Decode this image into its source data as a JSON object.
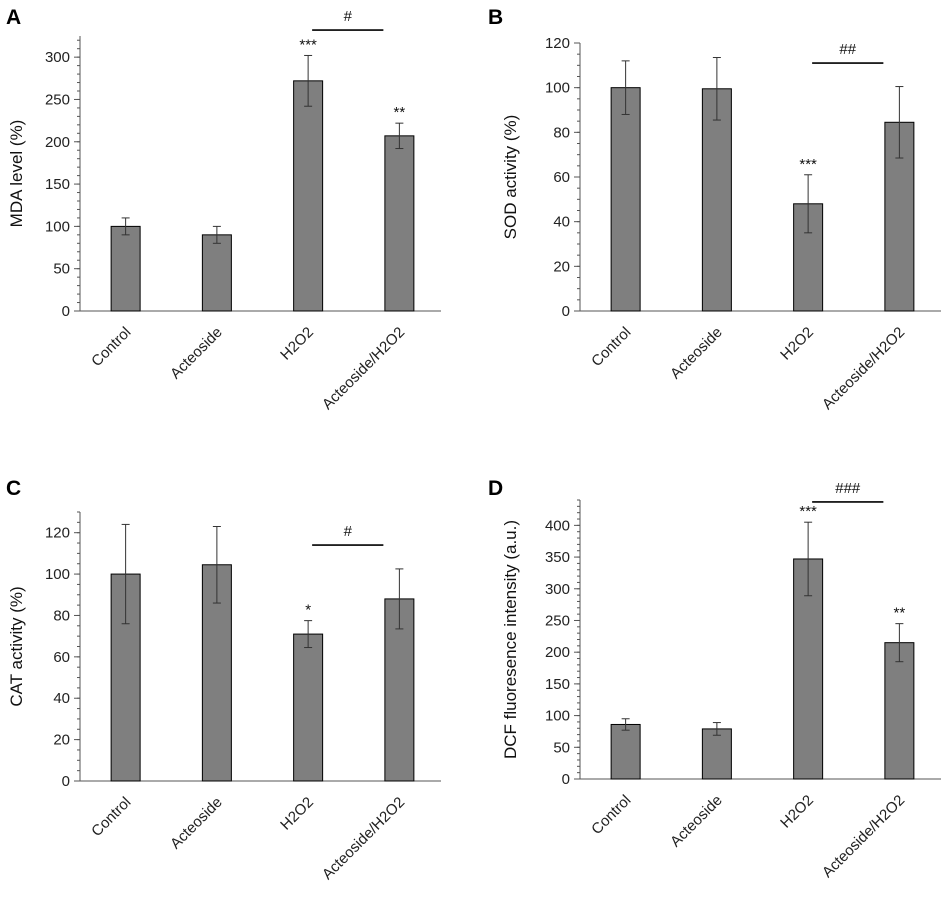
{
  "figure": {
    "bar_color": "#7f7f7f"
  },
  "chart_data": [
    {
      "type": "bar",
      "panel": "A",
      "categories": [
        "Control",
        "Acteoside",
        "H2O2",
        "Acteoside/H2O2"
      ],
      "values": [
        100,
        90,
        272,
        207
      ],
      "errors": [
        10,
        10,
        30,
        15
      ],
      "significance": [
        "",
        "",
        "***",
        "**"
      ],
      "bracket": {
        "from": 2,
        "to": 3,
        "label": "#",
        "y": 332
      },
      "ylabel": "MDA level (%)",
      "ylim": [
        0,
        325
      ],
      "yticks": [
        0,
        50,
        100,
        150,
        200,
        250,
        300
      ],
      "ytick_labels": [
        "0",
        "50",
        "100",
        "150",
        "200",
        "250",
        "300"
      ],
      "minor_step": 10
    },
    {
      "type": "bar",
      "panel": "B",
      "categories": [
        "Control",
        "Acteoside",
        "H2O2",
        "Acteoside/H2O2"
      ],
      "values": [
        100,
        99.5,
        48,
        84.5
      ],
      "errors": [
        12,
        14,
        13,
        16
      ],
      "significance": [
        "",
        "",
        "***",
        ""
      ],
      "bracket": {
        "from": 2,
        "to": 3,
        "label": "##",
        "y": 111
      },
      "ylabel": "SOD activity (%)",
      "ylim": [
        0,
        120
      ],
      "yticks": [
        0,
        20,
        40,
        60,
        80,
        100,
        120
      ],
      "ytick_labels": [
        "0",
        "20",
        "40",
        "60",
        "80",
        "100",
        "120"
      ],
      "minor_step": 5
    },
    {
      "type": "bar",
      "panel": "C",
      "categories": [
        "Control",
        "Acteoside",
        "H2O2",
        "Acteoside/H2O2"
      ],
      "values": [
        100,
        104.5,
        71,
        88
      ],
      "errors": [
        24,
        18.5,
        6.5,
        14.5
      ],
      "significance": [
        "",
        "",
        "*",
        ""
      ],
      "bracket": {
        "from": 2,
        "to": 3,
        "label": "#",
        "y": 114
      },
      "ylabel": "CAT activity (%)",
      "ylim": [
        0,
        130
      ],
      "yticks": [
        0,
        20,
        40,
        60,
        80,
        100,
        120
      ],
      "ytick_labels": [
        "0",
        "20",
        "40",
        "60",
        "80",
        "100",
        "120"
      ],
      "minor_step": 5
    },
    {
      "type": "bar",
      "panel": "D",
      "categories": [
        "Control",
        "Acteoside",
        "H2O2",
        "Acteoside/H2O2"
      ],
      "values": [
        86,
        79,
        347,
        215
      ],
      "errors": [
        9,
        10,
        58,
        30
      ],
      "significance": [
        "",
        "",
        "***",
        "**"
      ],
      "bracket": {
        "from": 2,
        "to": 3,
        "label": "###",
        "y": 437
      },
      "ylabel": "DCF fluoresence intensity (a.u.)",
      "ylim": [
        0,
        440
      ],
      "yticks": [
        0,
        50,
        100,
        150,
        200,
        250,
        300,
        350,
        400
      ],
      "ytick_labels": [
        "0",
        "50",
        "100",
        "150",
        "200",
        "250",
        "300",
        "350",
        "400"
      ],
      "minor_step": 10
    }
  ]
}
